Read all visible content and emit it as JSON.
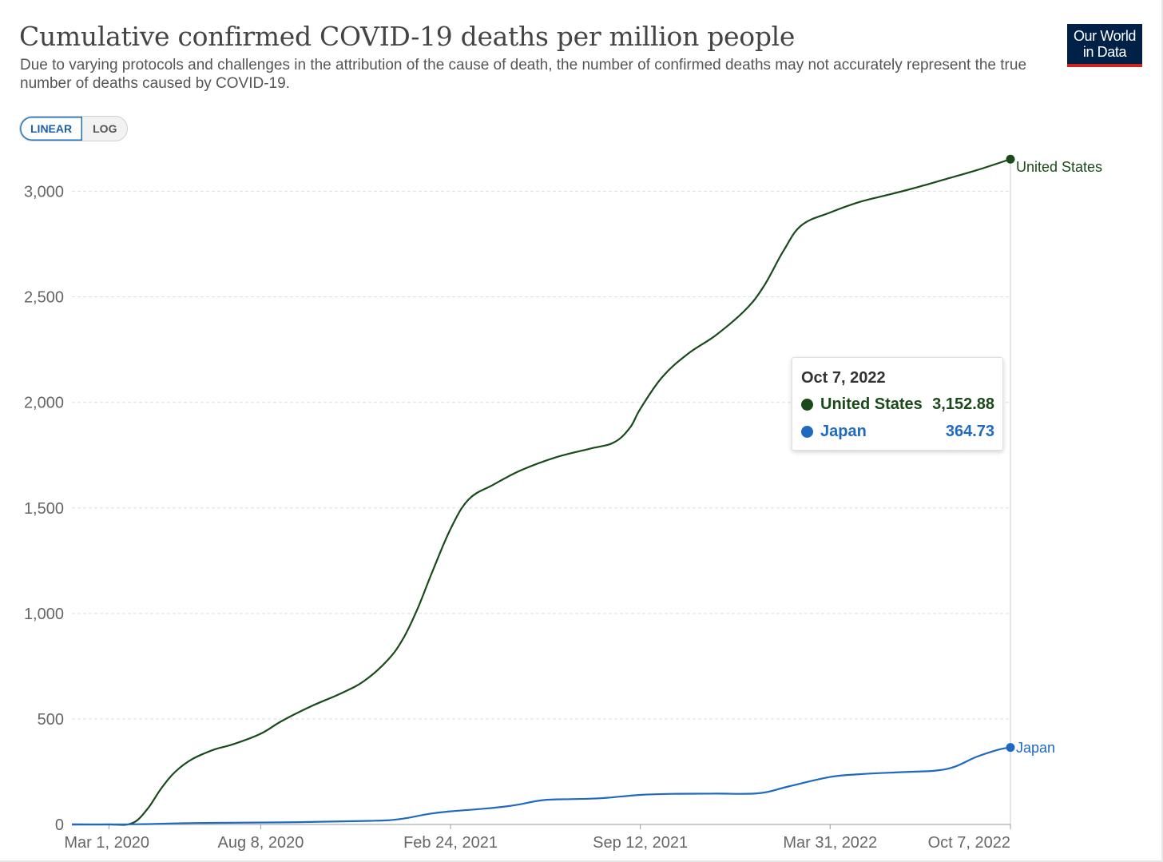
{
  "header": {
    "title": "Cumulative confirmed COVID-19 deaths per million people",
    "subtitle": "Due to varying protocols and challenges in the attribution of the cause of death, the number of confirmed deaths may not accurately represent the true number of deaths caused by COVID-19.",
    "logo_line1": "Our World",
    "logo_line2": "in Data"
  },
  "controls": {
    "linear_label": "LINEAR",
    "log_label": "LOG",
    "active_scale": "linear"
  },
  "tooltip": {
    "date": "Oct 7, 2022",
    "rows": [
      {
        "name": "United States",
        "value": "3,152.88",
        "color": "#1a4a1a"
      },
      {
        "name": "Japan",
        "value": "364.73",
        "color": "#1f6ac0"
      }
    ]
  },
  "chart_data": {
    "type": "line",
    "title": "Cumulative confirmed COVID-19 deaths per million people",
    "xlabel": "",
    "ylabel": "",
    "xlim": [
      "2020-01-22",
      "2022-10-07"
    ],
    "ylim": [
      0,
      3150
    ],
    "yticks": [
      0,
      500,
      1000,
      1500,
      2000,
      2500,
      3000
    ],
    "ytick_labels": [
      "0",
      "500",
      "1,000",
      "1,500",
      "2,000",
      "2,500",
      "3,000"
    ],
    "xticks": [
      "2020-03-01",
      "2020-08-08",
      "2021-02-24",
      "2021-09-12",
      "2022-03-31",
      "2022-10-07"
    ],
    "xtick_labels": [
      "Mar 1, 2020",
      "Aug 8, 2020",
      "Feb 24, 2021",
      "Sep 12, 2021",
      "Mar 31, 2022",
      "Oct 7, 2022"
    ],
    "grid": "horizontal dashed",
    "legend": "end-of-line labels",
    "series": [
      {
        "name": "United States",
        "color": "#1a4a1a",
        "points": [
          [
            "2020-01-22",
            0
          ],
          [
            "2020-03-01",
            0
          ],
          [
            "2020-03-25",
            5
          ],
          [
            "2020-04-10",
            70
          ],
          [
            "2020-04-25",
            170
          ],
          [
            "2020-05-10",
            250
          ],
          [
            "2020-05-28",
            310
          ],
          [
            "2020-06-20",
            355
          ],
          [
            "2020-07-10",
            380
          ],
          [
            "2020-08-08",
            430
          ],
          [
            "2020-08-30",
            490
          ],
          [
            "2020-09-30",
            560
          ],
          [
            "2020-10-31",
            620
          ],
          [
            "2020-11-25",
            680
          ],
          [
            "2020-12-20",
            780
          ],
          [
            "2021-01-05",
            880
          ],
          [
            "2021-01-20",
            1020
          ],
          [
            "2021-02-05",
            1200
          ],
          [
            "2021-02-24",
            1400
          ],
          [
            "2021-03-15",
            1540
          ],
          [
            "2021-04-10",
            1610
          ],
          [
            "2021-05-10",
            1680
          ],
          [
            "2021-06-15",
            1740
          ],
          [
            "2021-07-20",
            1780
          ],
          [
            "2021-08-15",
            1810
          ],
          [
            "2021-09-01",
            1880
          ],
          [
            "2021-09-12",
            1970
          ],
          [
            "2021-10-05",
            2120
          ],
          [
            "2021-11-01",
            2230
          ],
          [
            "2021-12-01",
            2320
          ],
          [
            "2022-01-01",
            2440
          ],
          [
            "2022-01-20",
            2550
          ],
          [
            "2022-02-10",
            2720
          ],
          [
            "2022-03-01",
            2840
          ],
          [
            "2022-03-31",
            2900
          ],
          [
            "2022-05-01",
            2950
          ],
          [
            "2022-06-01",
            2985
          ],
          [
            "2022-07-01",
            3020
          ],
          [
            "2022-08-01",
            3060
          ],
          [
            "2022-09-01",
            3100
          ],
          [
            "2022-10-07",
            3152.88
          ]
        ]
      },
      {
        "name": "Japan",
        "color": "#1f6ac0",
        "points": [
          [
            "2020-01-22",
            0
          ],
          [
            "2020-04-01",
            1
          ],
          [
            "2020-06-01",
            7
          ],
          [
            "2020-09-01",
            10
          ],
          [
            "2020-12-01",
            17
          ],
          [
            "2021-01-01",
            25
          ],
          [
            "2021-02-01",
            50
          ],
          [
            "2021-02-24",
            62
          ],
          [
            "2021-04-01",
            75
          ],
          [
            "2021-05-01",
            90
          ],
          [
            "2021-06-01",
            115
          ],
          [
            "2021-07-01",
            120
          ],
          [
            "2021-08-01",
            124
          ],
          [
            "2021-09-12",
            140
          ],
          [
            "2021-10-15",
            145
          ],
          [
            "2021-12-01",
            146
          ],
          [
            "2022-01-15",
            148
          ],
          [
            "2022-02-15",
            180
          ],
          [
            "2022-03-31",
            225
          ],
          [
            "2022-05-01",
            238
          ],
          [
            "2022-06-15",
            248
          ],
          [
            "2022-07-20",
            255
          ],
          [
            "2022-08-10",
            275
          ],
          [
            "2022-09-01",
            320
          ],
          [
            "2022-09-25",
            355
          ],
          [
            "2022-10-07",
            364.73
          ]
        ]
      }
    ],
    "end_labels": [
      "United States",
      "Japan"
    ]
  }
}
